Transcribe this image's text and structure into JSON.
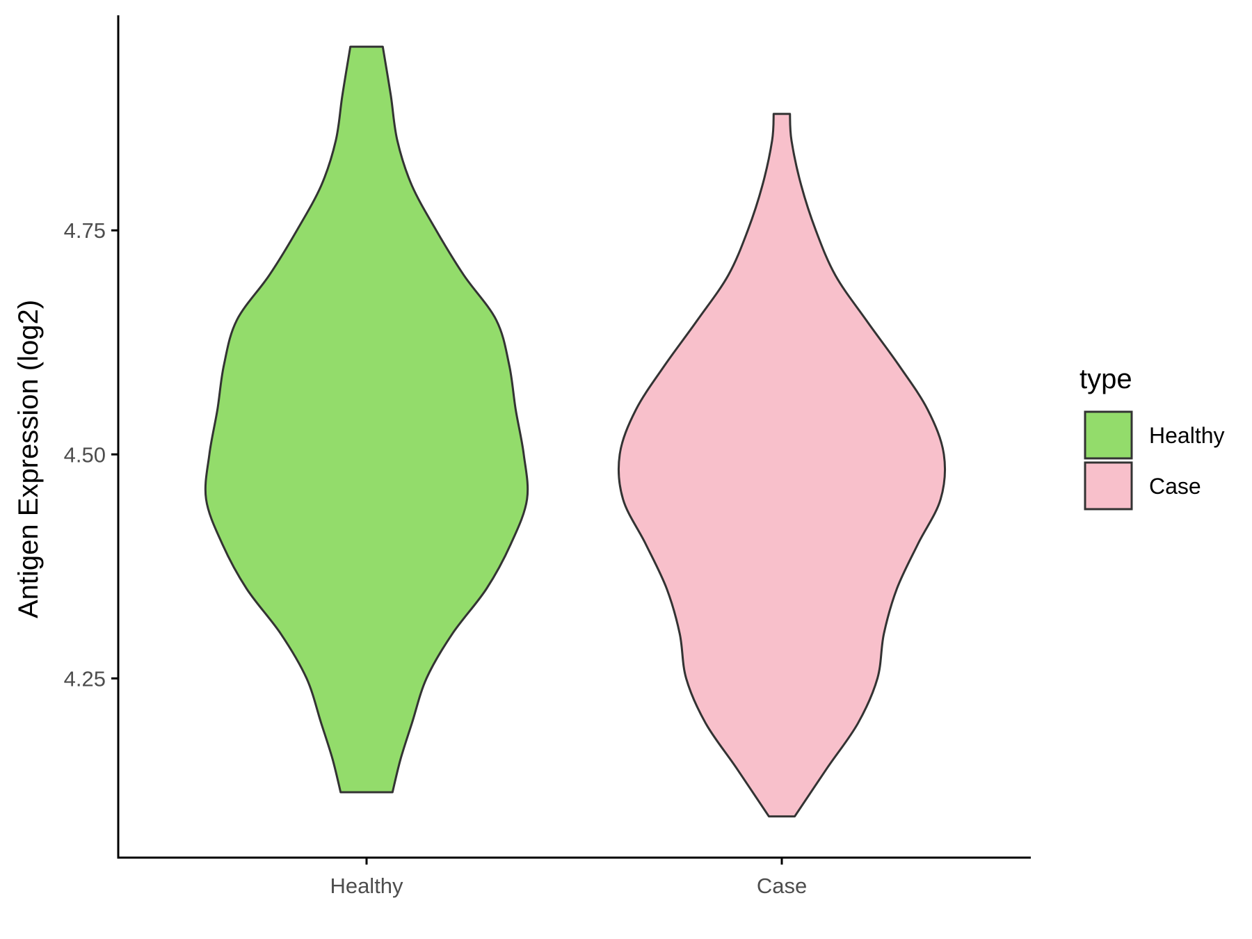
{
  "chart_data": {
    "type": "violin",
    "ylabel": "Antigen Expression (log2)",
    "categories": [
      "Healthy",
      "Case"
    ],
    "yticks": [
      4.25,
      4.5,
      4.75
    ],
    "ytick_labels": [
      "4.25",
      "4.50",
      "4.75"
    ],
    "ylim": [
      4.05,
      4.99
    ],
    "grid": false,
    "legend": {
      "title": "type",
      "position": "right",
      "entries": [
        {
          "label": "Healthy",
          "color": "#93dc6b"
        },
        {
          "label": "Case",
          "color": "#f8c0cb"
        }
      ]
    },
    "series": [
      {
        "category": "Healthy",
        "color": "#93dc6b",
        "min": 4.123,
        "max": 4.955,
        "density": [
          [
            4.123,
            0.16
          ],
          [
            4.16,
            0.21
          ],
          [
            4.2,
            0.28
          ],
          [
            4.25,
            0.37
          ],
          [
            4.3,
            0.53
          ],
          [
            4.35,
            0.74
          ],
          [
            4.4,
            0.89
          ],
          [
            4.45,
            0.99
          ],
          [
            4.5,
            0.97
          ],
          [
            4.55,
            0.92
          ],
          [
            4.6,
            0.88
          ],
          [
            4.65,
            0.8
          ],
          [
            4.7,
            0.6
          ],
          [
            4.75,
            0.43
          ],
          [
            4.8,
            0.28
          ],
          [
            4.85,
            0.19
          ],
          [
            4.9,
            0.15
          ],
          [
            4.955,
            0.1
          ]
        ]
      },
      {
        "category": "Case",
        "color": "#f8c0cb",
        "min": 4.096,
        "max": 4.88,
        "density": [
          [
            4.096,
            0.08
          ],
          [
            4.15,
            0.28
          ],
          [
            4.2,
            0.47
          ],
          [
            4.25,
            0.59
          ],
          [
            4.3,
            0.63
          ],
          [
            4.35,
            0.71
          ],
          [
            4.4,
            0.84
          ],
          [
            4.45,
            0.98
          ],
          [
            4.5,
            1.0
          ],
          [
            4.55,
            0.9
          ],
          [
            4.6,
            0.72
          ],
          [
            4.65,
            0.52
          ],
          [
            4.7,
            0.33
          ],
          [
            4.75,
            0.21
          ],
          [
            4.8,
            0.12
          ],
          [
            4.85,
            0.06
          ],
          [
            4.88,
            0.05
          ]
        ]
      }
    ]
  }
}
